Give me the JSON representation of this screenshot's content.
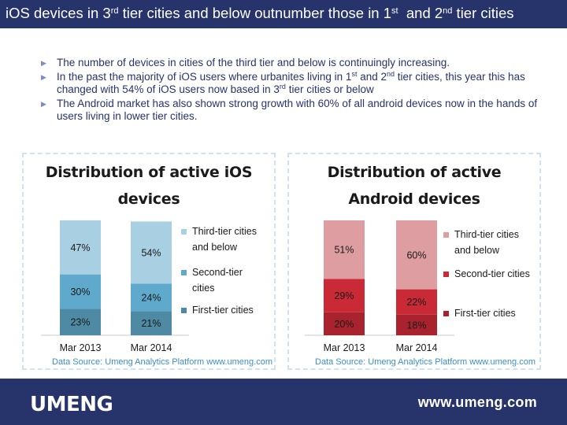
{
  "header": {
    "title_parts": [
      "iOS devices in 3",
      "rd",
      " tier cities and below outnumber those in 1",
      "st",
      "  and 2",
      "nd",
      " tier cities"
    ]
  },
  "bullets": [
    {
      "parts": [
        "The number of devices in cities of the third tier and below is continuingly increasing."
      ]
    },
    {
      "parts": [
        "In the past the majority of iOS users where urbanites living in 1",
        "st",
        " and 2",
        "nd",
        " tier cities, this year this has changed with 54% of iOS users now based in 3",
        "rd",
        " tier cities or below"
      ]
    },
    {
      "parts": [
        "The Android market has also shown strong growth with 60% of all android devices now in the hands of users living in lower tier cities."
      ]
    }
  ],
  "chart_data": [
    {
      "type": "bar",
      "stacked": true,
      "title": "Distribution of active iOS devices",
      "categories": [
        "Mar 2013",
        "Mar 2014"
      ],
      "series": [
        {
          "name": "First-tier cities",
          "values": [
            23,
            21
          ],
          "labels": [
            "23%",
            "21%"
          ],
          "color": "#4e8aa3"
        },
        {
          "name": "Second-tier cities",
          "values": [
            30,
            24
          ],
          "labels": [
            "30%",
            "24%"
          ],
          "color": "#5ea9cc"
        },
        {
          "name": "Third-tier cities and below",
          "values": [
            47,
            54
          ],
          "labels": [
            "47%",
            "54%"
          ],
          "color": "#a9cfe2"
        }
      ],
      "ylim": [
        0,
        100
      ],
      "legend": "right",
      "source": "Data Source: Umeng Analytics Platform www.umeng.com"
    },
    {
      "type": "bar",
      "stacked": true,
      "title": "Distribution of active Android devices",
      "categories": [
        "Mar 2013",
        "Mar 2014"
      ],
      "series": [
        {
          "name": "First-tier cities",
          "values": [
            20,
            18
          ],
          "labels": [
            "20%",
            "18%"
          ],
          "color": "#a8232e"
        },
        {
          "name": "Second-tier cities",
          "values": [
            29,
            22
          ],
          "labels": [
            "29%",
            "22%"
          ],
          "color": "#c92a36"
        },
        {
          "name": "Third-tier cities and below",
          "values": [
            51,
            60
          ],
          "labels": [
            "51%",
            "60%"
          ],
          "color": "#dd9da1"
        }
      ],
      "ylim": [
        0,
        100
      ],
      "legend": "right",
      "source": "Data Source: Umeng Analytics Platform www.umeng.com"
    }
  ],
  "titles": {
    "ios": [
      "Distribution of active iOS",
      "devices"
    ],
    "android": [
      "Distribution of active",
      "Android devices"
    ]
  },
  "legend_lines": {
    "third": [
      "Third-tier cities",
      "and below"
    ],
    "second_ios": [
      "Second-tier",
      "cities"
    ],
    "second_android": [
      "Second-tier cities"
    ],
    "first": [
      "First-tier cities"
    ]
  },
  "footer": {
    "logo_text": "UMENG",
    "url": "www.umeng.com"
  }
}
